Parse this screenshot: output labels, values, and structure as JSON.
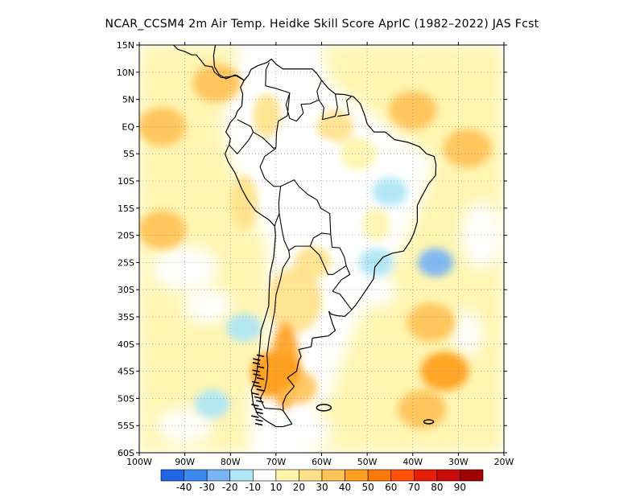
{
  "title": "NCAR_CCSM4  2m Air Temp. Heidke Skill Score AprIC (1982–2022) JAS Fcst",
  "colors": {
    "background": "#ffffff",
    "coast": "#000000",
    "grid": "#999999"
  },
  "map": {
    "lon_range": [
      -100,
      -20
    ],
    "lat_range": [
      -60,
      15
    ],
    "lon_ticks": [
      {
        "value": -100,
        "label": "100W"
      },
      {
        "value": -90,
        "label": "90W"
      },
      {
        "value": -80,
        "label": "80W"
      },
      {
        "value": -70,
        "label": "70W"
      },
      {
        "value": -60,
        "label": "60W"
      },
      {
        "value": -50,
        "label": "50W"
      },
      {
        "value": -40,
        "label": "40W"
      },
      {
        "value": -30,
        "label": "30W"
      },
      {
        "value": -20,
        "label": "20W"
      }
    ],
    "lat_ticks": [
      {
        "value": 15,
        "label": "15N"
      },
      {
        "value": 10,
        "label": "10N"
      },
      {
        "value": 5,
        "label": "5N"
      },
      {
        "value": 0,
        "label": "EQ"
      },
      {
        "value": -5,
        "label": "5S"
      },
      {
        "value": -10,
        "label": "10S"
      },
      {
        "value": -15,
        "label": "15S"
      },
      {
        "value": -20,
        "label": "20S"
      },
      {
        "value": -25,
        "label": "25S"
      },
      {
        "value": -30,
        "label": "30S"
      },
      {
        "value": -35,
        "label": "35S"
      },
      {
        "value": -40,
        "label": "40S"
      },
      {
        "value": -45,
        "label": "45S"
      },
      {
        "value": -50,
        "label": "50S"
      },
      {
        "value": -55,
        "label": "55S"
      },
      {
        "value": -60,
        "label": "60S"
      }
    ]
  },
  "colorbar": {
    "colors": [
      "#1f66e6",
      "#3c8cf0",
      "#78b4f5",
      "#afe6f5",
      "#ffffff",
      "#fff5aa",
      "#ffe187",
      "#ffc35a",
      "#ffa01e",
      "#ff780a",
      "#ff500a",
      "#e61e0a",
      "#c80a0a",
      "#a00000"
    ],
    "labels": [
      "-40",
      "-30",
      "-20",
      "-10",
      "10",
      "20",
      "30",
      "40",
      "50",
      "60",
      "70",
      "80",
      "90"
    ]
  },
  "field": {
    "type": "heatmap",
    "units": "skill score",
    "features": [
      {
        "region": "eastern tropical Pacific off Central America",
        "lon": -83,
        "lat": 8,
        "value": 35
      },
      {
        "region": "tropical Pacific near equator",
        "lon": -95,
        "lat": 0,
        "value": 30
      },
      {
        "region": "tropical Atlantic off NE Brazil",
        "lon": -28,
        "lat": -4,
        "value": 35
      },
      {
        "region": "equatorial Atlantic",
        "lon": -40,
        "lat": 3,
        "value": 30
      },
      {
        "region": "Pacific off southern Peru",
        "lon": -95,
        "lat": -19,
        "value": 30
      },
      {
        "region": "southern Andes / Patagonia",
        "lon": -70,
        "lat": -45,
        "value": 40
      },
      {
        "region": "Southwest Atlantic",
        "lon": -36,
        "lat": -36,
        "value": 30
      },
      {
        "region": "South Atlantic near 45S",
        "lon": -33,
        "lat": -45,
        "value": 40
      },
      {
        "region": "South Atlantic near 52S",
        "lon": -38,
        "lat": -52,
        "value": 35
      },
      {
        "region": "South Atlantic subtropics",
        "lon": -35,
        "lat": -25,
        "value": -20
      },
      {
        "region": "southern Brazil",
        "lon": -48,
        "lat": -25,
        "value": -10
      },
      {
        "region": "interior Brazil",
        "lon": -45,
        "lat": -12,
        "value": -10
      },
      {
        "region": "southeast Pacific",
        "lon": -77,
        "lat": -37,
        "value": -10
      },
      {
        "region": "far southeast Pacific",
        "lon": -84,
        "lat": -51,
        "value": -10
      },
      {
        "region": "Amazon basin",
        "lon": -60,
        "lat": -5,
        "value": 5
      }
    ]
  }
}
